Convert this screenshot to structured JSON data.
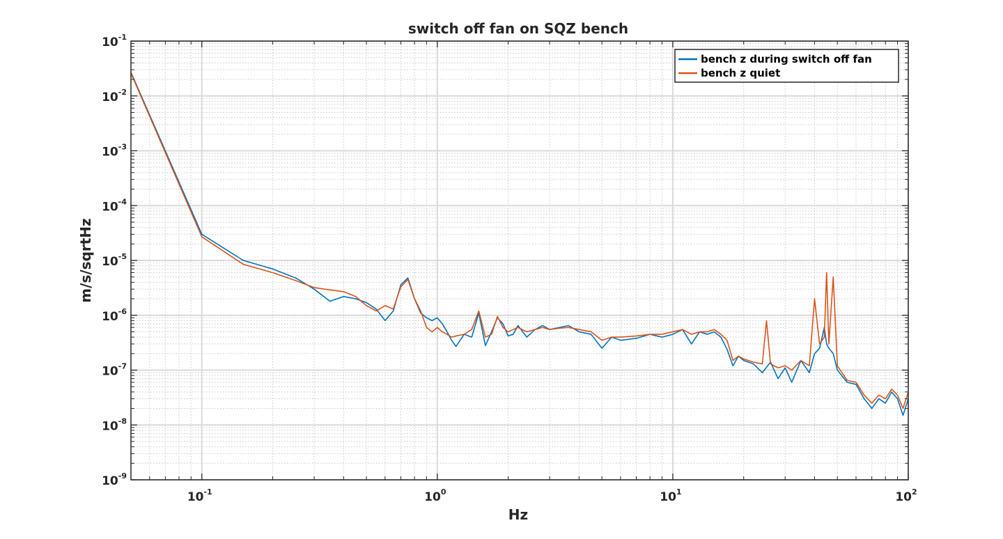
{
  "chart_data": {
    "type": "line",
    "title": "switch off fan on SQZ bench",
    "xlabel": "Hz",
    "ylabel": "m/s/sqrtHz",
    "xscale": "log",
    "yscale": "log",
    "xlim": [
      0.05,
      100
    ],
    "ylim": [
      1e-09,
      0.1
    ],
    "x_ticks": [
      {
        "base": "10",
        "exp": "-1",
        "value": 0.1
      },
      {
        "base": "10",
        "exp": "0",
        "value": 1
      },
      {
        "base": "10",
        "exp": "1",
        "value": 10
      },
      {
        "base": "10",
        "exp": "2",
        "value": 100
      }
    ],
    "y_ticks": [
      {
        "base": "10",
        "exp": "-9",
        "value": 1e-09
      },
      {
        "base": "10",
        "exp": "-8",
        "value": 1e-08
      },
      {
        "base": "10",
        "exp": "-7",
        "value": 1e-07
      },
      {
        "base": "10",
        "exp": "-6",
        "value": 1e-06
      },
      {
        "base": "10",
        "exp": "-5",
        "value": 1e-05
      },
      {
        "base": "10",
        "exp": "-4",
        "value": 0.0001
      },
      {
        "base": "10",
        "exp": "-3",
        "value": 0.001
      },
      {
        "base": "10",
        "exp": "-2",
        "value": 0.01
      },
      {
        "base": "10",
        "exp": "-1",
        "value": 0.1
      }
    ],
    "grid": true,
    "minor_grid": true,
    "legend_position": "top-right",
    "series": [
      {
        "name": "bench z during switch off fan",
        "color": "#0072BD",
        "x": [
          0.05,
          0.1,
          0.15,
          0.2,
          0.25,
          0.3,
          0.35,
          0.4,
          0.45,
          0.5,
          0.55,
          0.6,
          0.65,
          0.7,
          0.75,
          0.8,
          0.85,
          0.9,
          0.95,
          1.0,
          1.05,
          1.1,
          1.15,
          1.2,
          1.3,
          1.4,
          1.5,
          1.6,
          1.7,
          1.8,
          1.9,
          2.0,
          2.1,
          2.2,
          2.4,
          2.6,
          2.8,
          3.0,
          3.3,
          3.6,
          4.0,
          4.5,
          5.0,
          5.5,
          6.0,
          7.0,
          8.0,
          9.0,
          10.0,
          11.0,
          12.0,
          13.0,
          14.0,
          15.0,
          16.0,
          17.0,
          18.0,
          19.0,
          20.0,
          22.0,
          24.0,
          26.0,
          28.0,
          30.0,
          32.0,
          35.0,
          38.0,
          40.0,
          42.0,
          44.0,
          45.0,
          46.0,
          48.0,
          50.0,
          55.0,
          60.0,
          65.0,
          70.0,
          75.0,
          80.0,
          85.0,
          90.0,
          95.0,
          100.0
        ],
        "y": [
          0.027,
          3e-05,
          1e-05,
          7e-06,
          4.8e-06,
          3e-06,
          1.8e-06,
          2.2e-06,
          2e-06,
          1.7e-06,
          1.3e-06,
          8e-07,
          1.2e-06,
          3.6e-06,
          4.8e-06,
          2e-06,
          1.1e-06,
          9e-07,
          8e-07,
          9e-07,
          7e-07,
          5e-07,
          3.5e-07,
          2.7e-07,
          4.5e-07,
          4e-07,
          1.1e-06,
          2.8e-07,
          5e-07,
          9e-07,
          7e-07,
          4.2e-07,
          4.5e-07,
          6.5e-07,
          4e-07,
          5.5e-07,
          6.5e-07,
          5.5e-07,
          6e-07,
          6.5e-07,
          5e-07,
          4.5e-07,
          2.5e-07,
          4e-07,
          3.5e-07,
          3.8e-07,
          4.5e-07,
          4e-07,
          4.5e-07,
          5.5e-07,
          3e-07,
          5e-07,
          4.5e-07,
          5e-07,
          4e-07,
          2.4e-07,
          1.2e-07,
          1.8e-07,
          1.5e-07,
          1.3e-07,
          9e-08,
          1.4e-07,
          7e-08,
          1.1e-07,
          6e-08,
          1.5e-07,
          9e-08,
          2e-07,
          2.5e-07,
          6e-07,
          3e-07,
          2.5e-07,
          2e-07,
          1e-07,
          6e-08,
          5.5e-08,
          3e-08,
          2e-08,
          3e-08,
          2.5e-08,
          4e-08,
          3e-08,
          1.5e-08,
          3e-08
        ]
      },
      {
        "name": "bench z quiet",
        "color": "#D95319",
        "x": [
          0.05,
          0.1,
          0.15,
          0.2,
          0.25,
          0.3,
          0.35,
          0.4,
          0.45,
          0.5,
          0.55,
          0.6,
          0.65,
          0.7,
          0.75,
          0.8,
          0.85,
          0.9,
          0.95,
          1.0,
          1.05,
          1.1,
          1.15,
          1.2,
          1.3,
          1.4,
          1.5,
          1.6,
          1.7,
          1.8,
          1.9,
          2.0,
          2.1,
          2.2,
          2.4,
          2.6,
          2.8,
          3.0,
          3.3,
          3.6,
          4.0,
          4.5,
          5.0,
          5.5,
          6.0,
          7.0,
          8.0,
          9.0,
          10.0,
          11.0,
          12.0,
          13.0,
          14.0,
          15.0,
          16.0,
          17.0,
          18.0,
          19.0,
          20.0,
          22.0,
          24.0,
          25.0,
          26.0,
          28.0,
          30.0,
          32.0,
          35.0,
          38.0,
          40.0,
          42.0,
          44.0,
          45.0,
          46.0,
          48.0,
          50.0,
          55.0,
          60.0,
          65.0,
          70.0,
          75.0,
          80.0,
          85.0,
          90.0,
          95.0,
          100.0
        ],
        "y": [
          0.026,
          2.7e-05,
          8.5e-06,
          6e-06,
          4.3e-06,
          3.2e-06,
          2.9e-06,
          2.7e-06,
          2.2e-06,
          1.5e-06,
          1.2e-06,
          1.5e-06,
          1.3e-06,
          3.3e-06,
          4.5e-06,
          2e-06,
          1.2e-06,
          6e-07,
          5e-07,
          6e-07,
          5e-07,
          4.5e-07,
          4e-07,
          4.2e-07,
          4.5e-07,
          5.5e-07,
          1.2e-06,
          4e-07,
          4.5e-07,
          9.5e-07,
          6e-07,
          5e-07,
          5.5e-07,
          6e-07,
          5e-07,
          5.5e-07,
          6e-07,
          5.5e-07,
          5.8e-07,
          6e-07,
          5.5e-07,
          5e-07,
          3.5e-07,
          4e-07,
          4e-07,
          4.2e-07,
          4.5e-07,
          4.5e-07,
          5e-07,
          5.5e-07,
          4.5e-07,
          5e-07,
          5e-07,
          5.5e-07,
          4.5e-07,
          3.5e-07,
          1.5e-07,
          1.8e-07,
          1.6e-07,
          1.4e-07,
          1.3e-07,
          8e-07,
          1.3e-07,
          1.1e-07,
          1.2e-07,
          1e-07,
          1.5e-07,
          1.2e-07,
          2e-06,
          3e-07,
          4e-07,
          6e-06,
          3e-07,
          5e-06,
          1.2e-07,
          6.5e-08,
          6e-08,
          3.5e-08,
          2.5e-08,
          3.5e-08,
          3e-08,
          4.5e-08,
          3.5e-08,
          2e-08,
          4e-08
        ]
      }
    ]
  }
}
